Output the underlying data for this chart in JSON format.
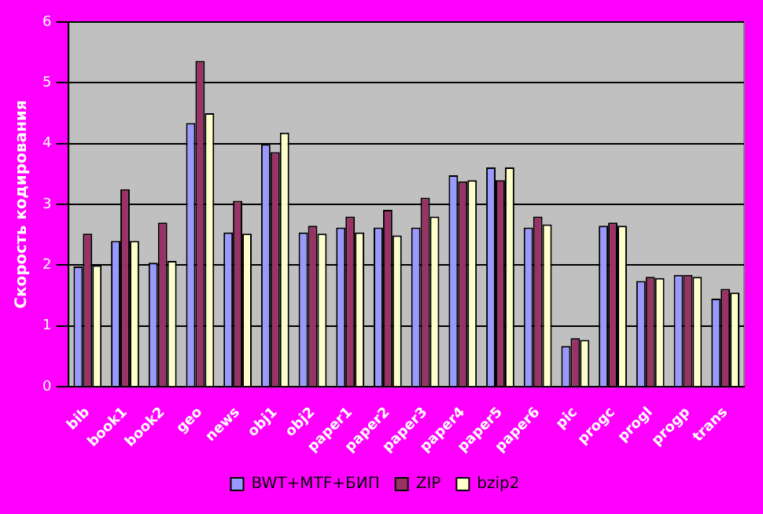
{
  "chart_data": {
    "type": "bar",
    "ylabel": "Скорость кодирования",
    "categories": [
      "bib",
      "book1",
      "book2",
      "geo",
      "news",
      "obj1",
      "obj2",
      "paper1",
      "paper2",
      "paper3",
      "paper4",
      "paper5",
      "paper6",
      "pic",
      "progc",
      "progl",
      "progp",
      "trans"
    ],
    "series": [
      {
        "name": "BWT+MTF+БИП",
        "color": "#9999ff",
        "values": [
          1.98,
          2.4,
          2.04,
          4.34,
          2.54,
          3.99,
          2.54,
          2.62,
          2.62,
          2.62,
          3.48,
          3.61,
          2.62,
          0.67,
          2.65,
          1.74,
          1.84,
          1.45
        ]
      },
      {
        "name": "ZIP",
        "color": "#993366",
        "values": [
          2.52,
          3.25,
          2.7,
          5.36,
          3.06,
          3.86,
          2.65,
          2.8,
          2.91,
          3.11,
          3.38,
          3.4,
          2.8,
          0.8,
          2.7,
          1.81,
          1.84,
          1.61
        ]
      },
      {
        "name": "bzip2",
        "color": "#ffffcc",
        "values": [
          2.0,
          2.4,
          2.07,
          4.5,
          2.52,
          4.18,
          2.52,
          2.54,
          2.49,
          2.8,
          3.4,
          3.61,
          2.67,
          0.77,
          2.65,
          1.79,
          1.81,
          1.55
        ]
      }
    ],
    "ylim": [
      0,
      6
    ],
    "yticks": [
      0,
      1,
      2,
      3,
      4,
      5,
      6
    ],
    "grid": "y",
    "legend": "bottom"
  }
}
